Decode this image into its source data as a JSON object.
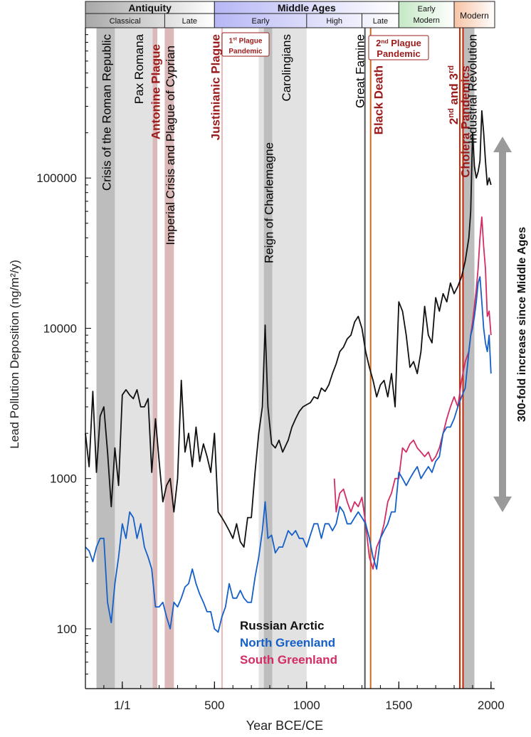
{
  "chart_data": {
    "type": "line",
    "xlabel": "Year BCE/CE",
    "ylabel": "Lead Pollution Deposition (ng/m²/y)",
    "y_scale": "log",
    "xlim": [
      -200,
      2020
    ],
    "ylim": [
      40,
      1000000
    ],
    "x_ticks": [
      {
        "value": 0,
        "label": "1/1"
      },
      {
        "value": 500,
        "label": "500"
      },
      {
        "value": 1000,
        "label": "1000"
      },
      {
        "value": 1500,
        "label": "1500"
      },
      {
        "value": 2000,
        "label": "2000"
      }
    ],
    "y_ticks": [
      {
        "value": 100,
        "label": "100"
      },
      {
        "value": 1000,
        "label": "1000"
      },
      {
        "value": 10000,
        "label": "10000"
      },
      {
        "value": 100000,
        "label": "100000"
      }
    ],
    "periods": [
      {
        "name": "Antiquity",
        "start": -200,
        "end": 500,
        "color": "#a8a8a8",
        "subperiods": [
          {
            "name": "Classical",
            "start": -200,
            "end": 230
          },
          {
            "name": "Late",
            "start": 230,
            "end": 500
          }
        ]
      },
      {
        "name": "Middle Ages",
        "start": 500,
        "end": 1500,
        "color": "#b7b7f5",
        "subperiods": [
          {
            "name": "Early",
            "start": 500,
            "end": 1000
          },
          {
            "name": "High",
            "start": 1000,
            "end": 1300
          },
          {
            "name": "Late",
            "start": 1300,
            "end": 1500
          }
        ]
      },
      {
        "name": "Early Modern",
        "start": 1500,
        "end": 1800,
        "color": "#c4e8c4",
        "subperiods": []
      },
      {
        "name": "Modern",
        "start": 1800,
        "end": 2020,
        "color": "#f7c3a4",
        "subperiods": []
      }
    ],
    "shaded_bands": [
      {
        "start": -140,
        "end": -40,
        "color": "#bdbdbd"
      },
      {
        "start": -40,
        "end": 170,
        "color": "#e2e2e2"
      },
      {
        "start": 165,
        "end": 190,
        "color": "#dcb9b9"
      },
      {
        "start": 230,
        "end": 280,
        "color": "#dcb9b9"
      },
      {
        "start": 740,
        "end": 800,
        "color": "#e2e2e2"
      },
      {
        "start": 768,
        "end": 814,
        "color": "#bdbdbd"
      },
      {
        "start": 814,
        "end": 1000,
        "color": "#e2e2e2"
      },
      {
        "start": 1850,
        "end": 1910,
        "color": "#bdbdbd"
      }
    ],
    "vertical_lines": [
      {
        "x": 541,
        "color": "#e8b8b8"
      },
      {
        "x": 1316,
        "color": "#555555"
      },
      {
        "x": 1347,
        "color": "#d2691e"
      },
      {
        "x": 1831,
        "color": "#cc2200"
      },
      {
        "x": 1848,
        "color": "#cc2200"
      }
    ],
    "event_labels": [
      {
        "text": "Crisis of the Roman Republic",
        "x": -90,
        "color": "#000000"
      },
      {
        "text": "Pax Romana",
        "x": 85,
        "color": "#000000"
      },
      {
        "text": "Antonine Plague",
        "x": 177,
        "color": "#9b1c1c"
      },
      {
        "text": "Imperial Crisis and Plague of Cyprian",
        "x": 255,
        "color": "#000000"
      },
      {
        "text": "Justinianic Plague",
        "x": 500,
        "color": "#9b1c1c"
      },
      {
        "text": "Reign of Charlemagne",
        "x": 790,
        "color": "#000000"
      },
      {
        "text": "Carolingians",
        "x": 885,
        "color": "#000000"
      },
      {
        "text": "Great Famine",
        "x": 1285,
        "color": "#000000"
      },
      {
        "text": "Black Death",
        "x": 1385,
        "color": "#9b1c1c"
      },
      {
        "text": "Cholera Pandemics",
        "x": 1855,
        "color": "#9b1c1c"
      },
      {
        "text": "Industrial Revolution",
        "x": 1895,
        "color": "#000000"
      }
    ],
    "boxed_labels": [
      {
        "line1": "Plague",
        "line2": "Pandemic",
        "ordinal": "1",
        "sup": "st"
      },
      {
        "line1": "Plague",
        "line2": "Pandemic",
        "ordinal": "2",
        "sup": "nd"
      }
    ],
    "cholera_prefix": {
      "first": "2",
      "first_sup": "nd",
      "and": "and",
      "second": "3",
      "second_sup": "rd"
    },
    "arrow_label": "300-fold increase since Middle Ages",
    "legend_position": "bottom-center",
    "series": [
      {
        "name": "Russian Arctic",
        "color": "#111111",
        "x": [
          -200,
          -180,
          -160,
          -140,
          -120,
          -100,
          -80,
          -60,
          -40,
          -20,
          0,
          20,
          40,
          60,
          80,
          100,
          120,
          140,
          160,
          180,
          200,
          220,
          240,
          260,
          280,
          300,
          320,
          340,
          360,
          380,
          400,
          420,
          440,
          460,
          480,
          500,
          520,
          540,
          560,
          580,
          600,
          620,
          640,
          660,
          680,
          700,
          720,
          740,
          760,
          775,
          790,
          810,
          830,
          850,
          870,
          900,
          920,
          940,
          960,
          980,
          1000,
          1020,
          1040,
          1060,
          1080,
          1100,
          1120,
          1140,
          1160,
          1180,
          1200,
          1220,
          1240,
          1260,
          1280,
          1300,
          1320,
          1340,
          1360,
          1380,
          1400,
          1420,
          1440,
          1460,
          1480,
          1500,
          1520,
          1540,
          1560,
          1580,
          1600,
          1620,
          1640,
          1660,
          1680,
          1700,
          1720,
          1740,
          1760,
          1780,
          1800,
          1820,
          1840,
          1860,
          1880,
          1890,
          1900,
          1910,
          1920,
          1930,
          1940,
          1950,
          1960,
          1970,
          1980,
          1990,
          2000
        ],
        "y": [
          2000,
          1200,
          3800,
          1100,
          2600,
          3000,
          1500,
          650,
          1600,
          900,
          3600,
          3900,
          3600,
          3400,
          3900,
          3000,
          3000,
          3400,
          1100,
          2500,
          1300,
          700,
          900,
          1000,
          600,
          1000,
          4500,
          1500,
          2000,
          1200,
          2200,
          1300,
          1700,
          1400,
          1100,
          2000,
          600,
          550,
          500,
          450,
          400,
          500,
          380,
          350,
          550,
          550,
          1100,
          2000,
          3000,
          10500,
          3000,
          1700,
          1600,
          1800,
          1500,
          1800,
          2200,
          2500,
          2800,
          3000,
          3100,
          3200,
          3500,
          3400,
          4000,
          3800,
          4200,
          5000,
          5800,
          7000,
          7500,
          8500,
          9000,
          11000,
          12000,
          10000,
          7000,
          5500,
          4500,
          3500,
          4200,
          4500,
          3500,
          5000,
          3000,
          15000,
          13000,
          9000,
          5500,
          6000,
          5000,
          7000,
          14000,
          9000,
          8000,
          16000,
          13000,
          17000,
          15000,
          20000,
          17000,
          19000,
          22000,
          28000,
          40000,
          60000,
          200000,
          120000,
          100000,
          110000,
          130000,
          280000,
          200000,
          130000,
          90000,
          100000,
          90000
        ]
      },
      {
        "name": "North Greenland",
        "color": "#1560c8",
        "x": [
          -200,
          -180,
          -160,
          -140,
          -120,
          -100,
          -80,
          -60,
          -40,
          -20,
          0,
          20,
          40,
          60,
          80,
          100,
          120,
          140,
          160,
          180,
          200,
          220,
          240,
          260,
          280,
          300,
          320,
          340,
          360,
          380,
          400,
          420,
          440,
          460,
          480,
          500,
          520,
          540,
          560,
          580,
          600,
          620,
          640,
          660,
          680,
          700,
          720,
          740,
          760,
          775,
          790,
          810,
          830,
          850,
          870,
          900,
          920,
          940,
          960,
          980,
          1000,
          1020,
          1040,
          1060,
          1080,
          1100,
          1120,
          1140,
          1160,
          1180,
          1200,
          1220,
          1240,
          1260,
          1280,
          1300,
          1320,
          1340,
          1360,
          1380,
          1400,
          1420,
          1440,
          1460,
          1480,
          1500,
          1520,
          1540,
          1560,
          1580,
          1600,
          1620,
          1640,
          1660,
          1680,
          1700,
          1720,
          1740,
          1760,
          1780,
          1800,
          1820,
          1840,
          1860,
          1880,
          1890,
          1900,
          1910,
          1920,
          1930,
          1940,
          1950,
          1960,
          1970,
          1980,
          1990,
          2000
        ],
        "y": [
          350,
          330,
          280,
          350,
          400,
          400,
          150,
          110,
          200,
          300,
          500,
          400,
          600,
          550,
          400,
          500,
          350,
          300,
          250,
          140,
          140,
          150,
          120,
          100,
          150,
          140,
          160,
          190,
          200,
          250,
          200,
          170,
          150,
          130,
          130,
          100,
          95,
          120,
          140,
          200,
          160,
          160,
          180,
          160,
          150,
          150,
          220,
          300,
          450,
          700,
          400,
          420,
          320,
          350,
          350,
          450,
          420,
          450,
          400,
          400,
          350,
          420,
          500,
          500,
          400,
          500,
          500,
          450,
          500,
          650,
          600,
          500,
          500,
          550,
          600,
          550,
          500,
          400,
          300,
          250,
          400,
          450,
          500,
          600,
          600,
          1100,
          1000,
          900,
          1000,
          1100,
          1200,
          1000,
          1100,
          1200,
          1100,
          1300,
          1400,
          2000,
          2200,
          2200,
          2500,
          3000,
          3500,
          4000,
          7000,
          9000,
          10000,
          12000,
          15000,
          20000,
          22000,
          15000,
          10000,
          8000,
          7000,
          9000,
          5000
        ]
      },
      {
        "name": "South Greenland",
        "color": "#d22d64",
        "x": [
          1150,
          1160,
          1170,
          1180,
          1200,
          1220,
          1240,
          1260,
          1280,
          1300,
          1320,
          1340,
          1360,
          1380,
          1400,
          1420,
          1440,
          1460,
          1480,
          1500,
          1520,
          1540,
          1560,
          1580,
          1600,
          1620,
          1640,
          1660,
          1680,
          1700,
          1720,
          1740,
          1760,
          1780,
          1800,
          1820,
          1840,
          1860,
          1880,
          1890,
          1900,
          1910,
          1920,
          1930,
          1940,
          1950,
          1960,
          1970,
          1980,
          1990,
          2000
        ],
        "y": [
          1000,
          600,
          700,
          800,
          850,
          700,
          600,
          700,
          650,
          750,
          500,
          300,
          250,
          350,
          400,
          500,
          700,
          800,
          1000,
          1000,
          1600,
          1500,
          1700,
          1800,
          1600,
          1500,
          1400,
          1500,
          1300,
          1400,
          1600,
          2000,
          2500,
          3000,
          3500,
          3000,
          4500,
          6000,
          7000,
          9000,
          11000,
          14000,
          18000,
          25000,
          40000,
          55000,
          35000,
          25000,
          12000,
          13000,
          9000
        ]
      }
    ]
  }
}
